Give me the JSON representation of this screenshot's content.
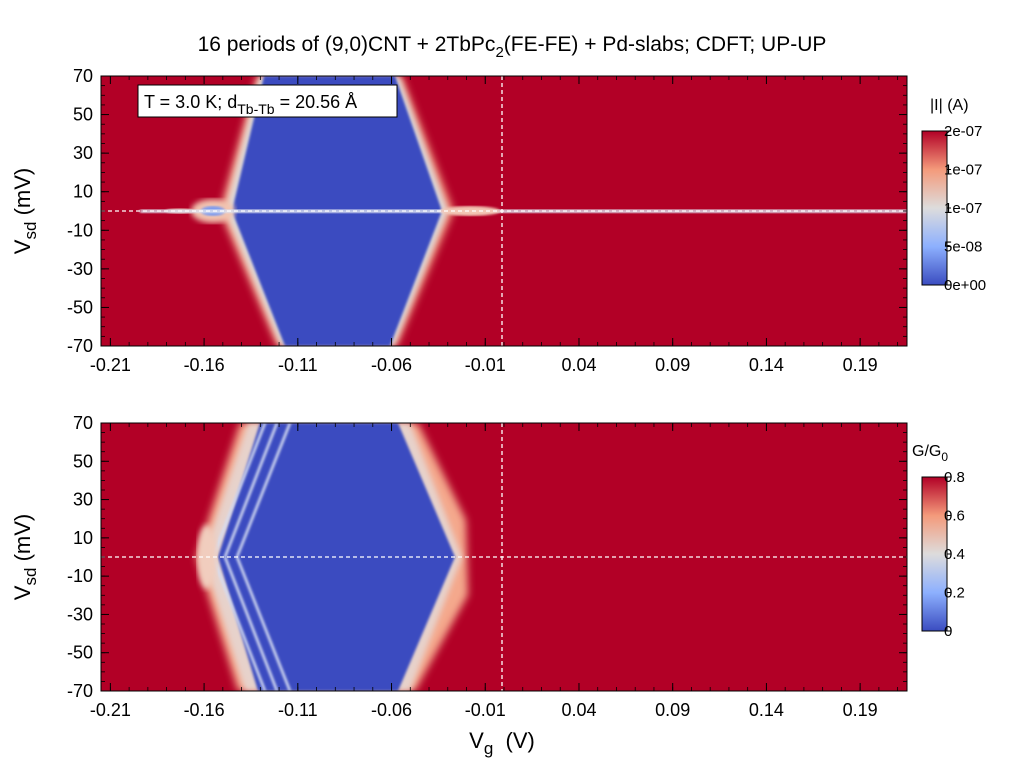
{
  "title": {
    "prefix": "16 periods of (9,0)CNT + 2TbPc",
    "sub": "2",
    "suffix": "(FE-FE) + Pd-slabs; CDFT; UP-UP"
  },
  "chart_data": [
    {
      "type": "heatmap",
      "xlim": [
        -0.215,
        0.215
      ],
      "ylim": [
        -70,
        70
      ],
      "xticks": [
        "-0.21",
        "-0.16",
        "-0.11",
        "-0.06",
        "-0.01",
        "0.04",
        "0.09",
        "0.14",
        "0.19"
      ],
      "yticks": [
        "70",
        "50",
        "30",
        "10",
        "-10",
        "-30",
        "-50",
        "-70"
      ],
      "xlabel": "",
      "ylabel": {
        "main": "V",
        "sub": "sd",
        "rest": " (mV)"
      },
      "annotation": {
        "prefix": "T = 3.0 K; d",
        "sub": "Tb-Tb",
        "suffix": " = 20.56 Å"
      },
      "colorbar": {
        "title": "|I| (A)",
        "range": [
          0,
          2e-07
        ],
        "ticks": [
          "2e-07",
          "1e-07",
          "1e-07",
          "5e-08",
          "0e+00"
        ]
      },
      "guide_lines": {
        "vertical_x": 0.0,
        "horizontal_y": 0.0,
        "style": "dashed-white"
      },
      "features": {
        "blockade_diamond": {
          "left_vertex_vg": -0.143,
          "right_vertex_vg": -0.022,
          "top_vg_range": [
            -0.11,
            -0.06
          ]
        },
        "zero_bias_line": "white line along Vsd = 0 from Vg -0.19 to 0.21"
      }
    },
    {
      "type": "heatmap",
      "xlim": [
        -0.215,
        0.215
      ],
      "ylim": [
        -70,
        70
      ],
      "xticks": [
        "-0.21",
        "-0.16",
        "-0.11",
        "-0.06",
        "-0.01",
        "0.04",
        "0.09",
        "0.14",
        "0.19"
      ],
      "yticks": [
        "70",
        "50",
        "30",
        "10",
        "-10",
        "-30",
        "-50",
        "-70"
      ],
      "xlabel": {
        "main": "V",
        "sub": "g",
        "rest": "  (V)"
      },
      "ylabel": {
        "main": "V",
        "sub": "sd",
        "rest": " (mV)"
      },
      "colorbar": {
        "title": {
          "main": "G/G",
          "sub": "0"
        },
        "range": [
          0,
          0.8
        ],
        "ticks": [
          "0.8",
          "0.6",
          "0.4",
          "0.2",
          "0"
        ]
      },
      "guide_lines": {
        "vertical_x": 0.0,
        "horizontal_y": 0.0,
        "style": "dashed-white"
      },
      "features": {
        "blockade_diamond": {
          "left_vertex_vg": -0.158,
          "right_vertex_vg": -0.015,
          "top_vg_range": [
            -0.12,
            -0.06
          ]
        },
        "excited_state_lines": 3
      }
    }
  ],
  "colors": {
    "saturated": "#B20026",
    "low": "#3A4CC0",
    "mid": "#DDDCDC",
    "axis": "#000000",
    "guide": "#FFFFFF"
  }
}
